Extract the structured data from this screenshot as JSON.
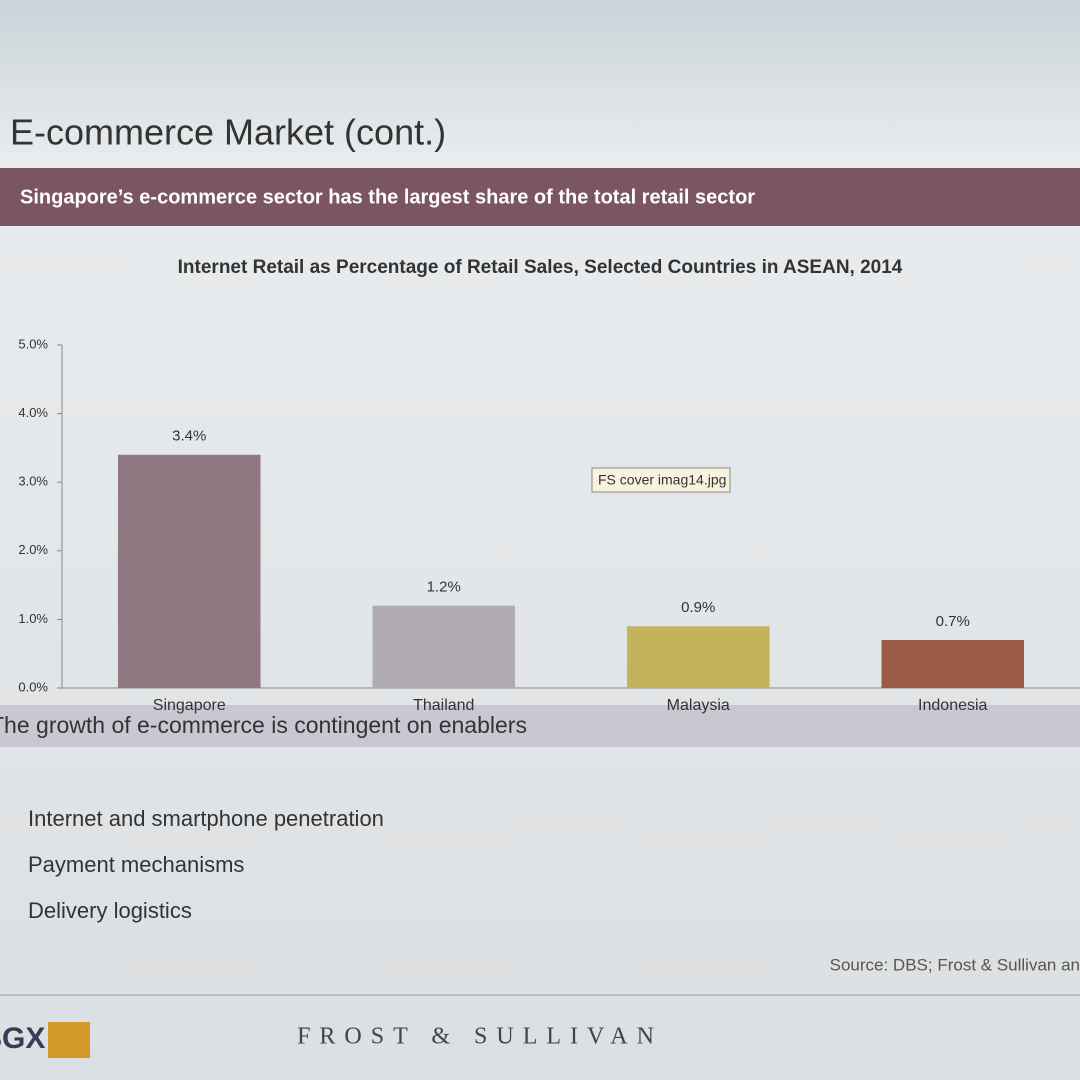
{
  "slide": {
    "title": "E-commerce Market (cont.)",
    "banner": "Singapore’s e-commerce sector has the largest share of the total retail sector",
    "tooltip": "FS cover imag14.jpg",
    "section_heading": "The growth of e-commerce is contingent on enablers",
    "bullets": [
      "Internet and smartphone penetration",
      "Payment mechanisms",
      "Delivery logistics"
    ],
    "source": "Source: DBS; Frost & Sullivan an",
    "footer_left": "SGX",
    "footer_center": "FROST & SULLIVAN"
  },
  "chart_data": {
    "type": "bar",
    "title": "Internet Retail as Percentage of Retail Sales, Selected Countries in ASEAN, 2014",
    "categories": [
      "Singapore",
      "Thailand",
      "Malaysia",
      "Indonesia"
    ],
    "values": [
      3.4,
      1.2,
      0.9,
      0.7
    ],
    "value_labels": [
      "3.4%",
      "1.2%",
      "0.9%",
      "0.7%"
    ],
    "colors": [
      "#8e7882",
      "#b1abb4",
      "#c2b35c",
      "#9a5a43"
    ],
    "ylim": [
      0,
      5
    ],
    "yticks": [
      {
        "value": 0,
        "label": "0.0%"
      },
      {
        "value": 1,
        "label": "1.0%"
      },
      {
        "value": 2,
        "label": "2.0%"
      },
      {
        "value": 3,
        "label": "3.0%"
      },
      {
        "value": 4,
        "label": "4.0%"
      },
      {
        "value": 5,
        "label": "5.0%"
      }
    ]
  }
}
